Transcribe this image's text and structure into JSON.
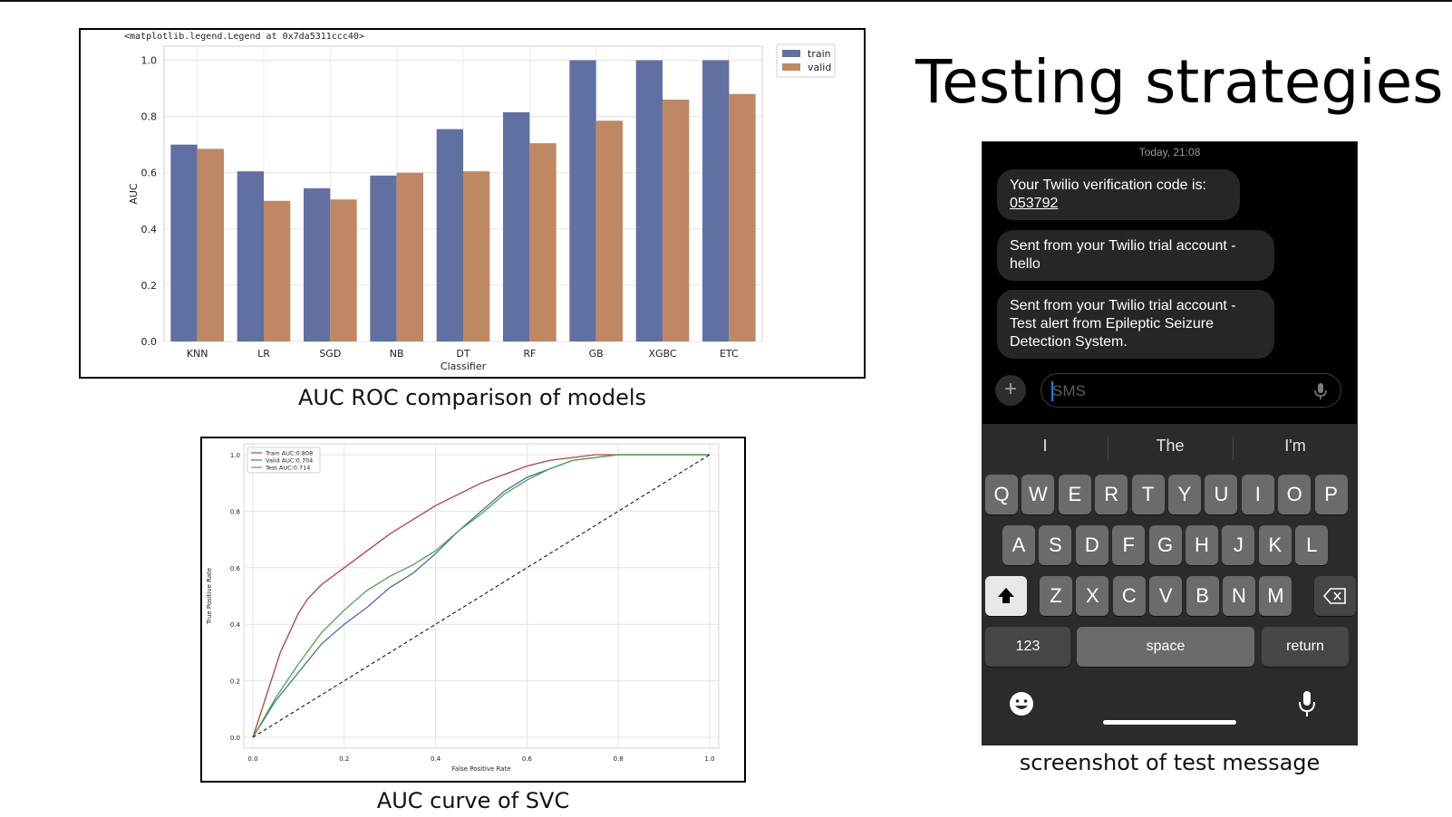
{
  "slide": {
    "title": "Testing strategies",
    "captions": {
      "bar": "AUC ROC comparison of models",
      "roc": "AUC curve of SVC",
      "phone": "screenshot of test message"
    }
  },
  "chart_data": [
    {
      "type": "bar",
      "title": "<matplotlib.legend.Legend at 0x7da5311ccc40>",
      "xlabel": "Classifier",
      "ylabel": "AUC",
      "ylim": [
        0,
        1.05
      ],
      "yticks": [
        "0.0",
        "0.2",
        "0.4",
        "0.6",
        "0.8",
        "1.0"
      ],
      "categories": [
        "KNN",
        "LR",
        "SGD",
        "NB",
        "DT",
        "RF",
        "GB",
        "XGBC",
        "ETC"
      ],
      "series": [
        {
          "name": "train",
          "color": "#6070a3",
          "values": [
            0.7,
            0.605,
            0.545,
            0.59,
            0.755,
            0.815,
            1.0,
            1.0,
            1.0
          ]
        },
        {
          "name": "valid",
          "color": "#bf8863",
          "values": [
            0.685,
            0.5,
            0.505,
            0.6,
            0.605,
            0.705,
            0.785,
            0.86,
            0.88
          ]
        }
      ],
      "legend": "top-right",
      "grid": true
    },
    {
      "type": "line",
      "xlabel": "False Positive Rate",
      "ylabel": "True Positive Rate",
      "xlim": [
        0,
        1
      ],
      "ylim": [
        0,
        1
      ],
      "xticks": [
        "0.0",
        "0.2",
        "0.4",
        "0.6",
        "0.8",
        "1.0"
      ],
      "yticks": [
        "0.0",
        "0.2",
        "0.4",
        "0.6",
        "0.8",
        "1.0"
      ],
      "legend": "top-left",
      "grid": true,
      "series": [
        {
          "name": "Train AUC:0.808",
          "color": "#c03a3a",
          "x": [
            0,
            0.02,
            0.04,
            0.06,
            0.08,
            0.1,
            0.12,
            0.15,
            0.2,
            0.25,
            0.3,
            0.35,
            0.4,
            0.45,
            0.5,
            0.55,
            0.6,
            0.65,
            0.7,
            0.75,
            0.8,
            1.0
          ],
          "y": [
            0,
            0.1,
            0.2,
            0.3,
            0.37,
            0.44,
            0.49,
            0.54,
            0.6,
            0.66,
            0.72,
            0.77,
            0.82,
            0.86,
            0.9,
            0.93,
            0.96,
            0.98,
            0.99,
            1.0,
            1.0,
            1.0
          ]
        },
        {
          "name": "Valid AUC:0.704",
          "color": "#4a6bb0",
          "x": [
            0,
            0.05,
            0.1,
            0.15,
            0.2,
            0.25,
            0.3,
            0.35,
            0.4,
            0.45,
            0.5,
            0.55,
            0.6,
            0.65,
            0.7,
            0.75,
            0.8,
            1.0
          ],
          "y": [
            0,
            0.13,
            0.23,
            0.33,
            0.4,
            0.46,
            0.53,
            0.58,
            0.65,
            0.73,
            0.8,
            0.87,
            0.92,
            0.95,
            0.98,
            0.99,
            1.0,
            1.0
          ]
        },
        {
          "name": "Test AUC:0.714",
          "color": "#4aa84a",
          "x": [
            0,
            0.05,
            0.1,
            0.15,
            0.2,
            0.25,
            0.3,
            0.35,
            0.4,
            0.45,
            0.5,
            0.55,
            0.6,
            0.65,
            0.7,
            0.75,
            0.8,
            1.0
          ],
          "y": [
            0,
            0.14,
            0.26,
            0.37,
            0.45,
            0.52,
            0.57,
            0.61,
            0.66,
            0.73,
            0.79,
            0.86,
            0.91,
            0.95,
            0.98,
            0.99,
            1.0,
            1.0
          ]
        },
        {
          "name": "",
          "color": "#000000",
          "dashed": true,
          "x": [
            0,
            1
          ],
          "y": [
            0,
            1
          ]
        }
      ]
    }
  ],
  "phone": {
    "timestamp": "Today, 21:08",
    "messages": [
      {
        "line1": "Your Twilio verification code is:",
        "code": "053792"
      },
      {
        "text": "Sent from your Twilio trial account - hello"
      },
      {
        "text": "Sent from your Twilio trial account - Test alert from Epileptic Seizure Detection System."
      }
    ],
    "input_placeholder": "SMS",
    "suggestions": [
      "I",
      "The",
      "I'm"
    ],
    "keyboard": {
      "row1": [
        "Q",
        "W",
        "E",
        "R",
        "T",
        "Y",
        "U",
        "I",
        "O",
        "P"
      ],
      "row2": [
        "A",
        "S",
        "D",
        "F",
        "G",
        "H",
        "J",
        "K",
        "L"
      ],
      "row3": [
        "Z",
        "X",
        "C",
        "V",
        "B",
        "N",
        "M"
      ],
      "numbers": "123",
      "space": "space",
      "return": "return"
    }
  }
}
